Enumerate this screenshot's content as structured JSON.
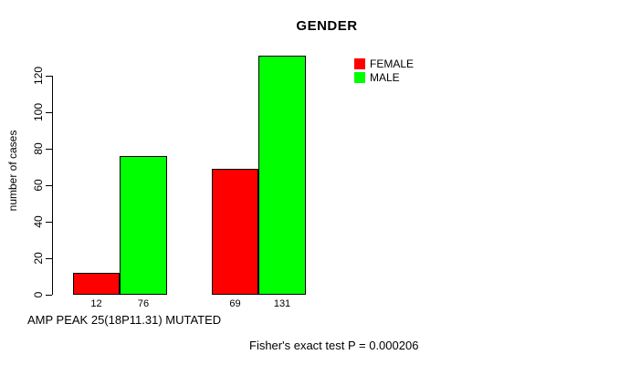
{
  "title": "GENDER",
  "y_axis": {
    "label": "number of cases",
    "tick_labels": [
      "0",
      "20",
      "40",
      "60",
      "80",
      "100",
      "120"
    ]
  },
  "legend": {
    "items": [
      {
        "label": "FEMALE",
        "color": "#FF0000"
      },
      {
        "label": "MALE",
        "color": "#00FF00"
      }
    ]
  },
  "caption": "AMP PEAK 25(18P11.31) MUTATED",
  "footnote": "Fisher's exact test P = 0.000206",
  "colors": {
    "female": "#FF0000",
    "male": "#00FF00",
    "axis": "#000000",
    "background": "#FFFFFF"
  },
  "chart_data": {
    "type": "bar",
    "title": "GENDER",
    "ylabel": "number of cases",
    "xlabel": "AMP PEAK 25(18P11.31) MUTATED",
    "categories": [
      "",
      ""
    ],
    "series": [
      {
        "name": "FEMALE",
        "color": "#FF0000",
        "values": [
          12,
          69
        ]
      },
      {
        "name": "MALE",
        "color": "#00FF00",
        "values": [
          76,
          131
        ]
      }
    ],
    "bar_value_labels": [
      "12",
      "76",
      "69",
      "131"
    ],
    "ylim": [
      0,
      120
    ],
    "yticks": [
      0,
      20,
      40,
      60,
      80,
      100,
      120
    ],
    "grid": false,
    "legend_position": "top-right",
    "annotation": "Fisher's exact test P = 0.000206"
  }
}
